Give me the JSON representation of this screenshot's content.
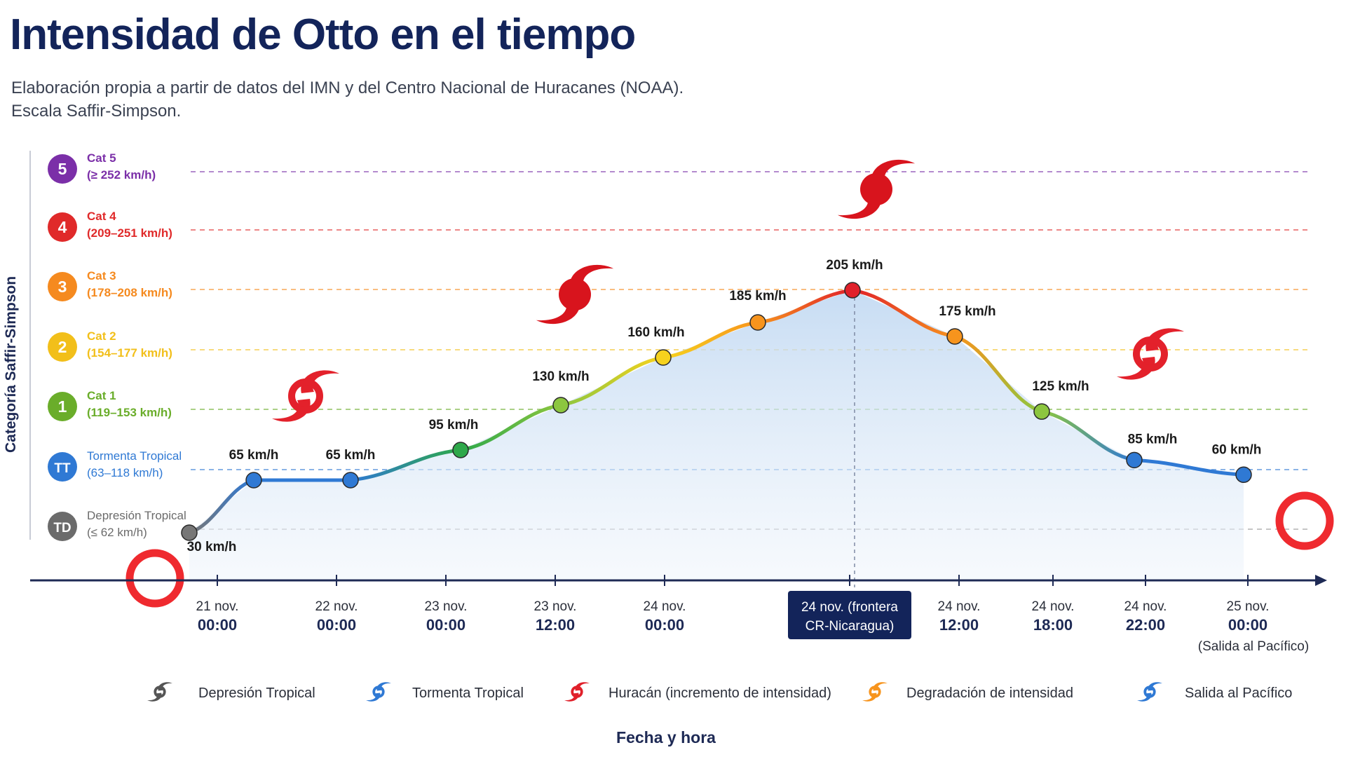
{
  "title": "Intensidad de Otto en el tiempo",
  "subtitle_line1": "Elaboración propia a partir de datos del IMN y del Centro Nacional de Huracanes (NOAA).",
  "subtitle_line2": "Escala Saffir-Simpson.",
  "chart_data": {
    "type": "line",
    "title": "Intensidad de Otto en el tiempo",
    "xlabel": "Fecha y hora",
    "ylabel": "Categoría Saffir-Simpson",
    "y_unit": "km/h",
    "categories": [
      {
        "badge": "5",
        "name": "Cat 5",
        "range": "(≥ 252 km/h)",
        "color": "#7b2fa8",
        "threshold": 252
      },
      {
        "badge": "4",
        "name": "Cat 4",
        "range": "(209–251 km/h)",
        "color": "#e02a2a",
        "threshold": 209
      },
      {
        "badge": "3",
        "name": "Cat 3",
        "range": "(178–208 km/h)",
        "color": "#f58a1f",
        "threshold": 178
      },
      {
        "badge": "2",
        "name": "Cat 2",
        "range": "(154–177 km/h)",
        "color": "#f2bf1a",
        "threshold": 154
      },
      {
        "badge": "1",
        "name": "Cat 1",
        "range": "(119–153 km/h)",
        "color": "#6aad2a",
        "threshold": 119
      },
      {
        "badge": "TT",
        "name": "Tormenta Tropical",
        "range": "(63–118 km/h)",
        "color": "#2f79d4",
        "threshold": 63
      },
      {
        "badge": "TD",
        "name": "Depresión Tropical",
        "range": "(≤ 62 km/h)",
        "color": "#6b6b6b",
        "threshold": 0
      }
    ],
    "points": [
      {
        "label": "30 km/h",
        "value": 30,
        "color": "#777777"
      },
      {
        "label": "65 km/h",
        "value": 65,
        "color": "#2f79d4"
      },
      {
        "label": "65 km/h",
        "value": 65,
        "color": "#2f79d4"
      },
      {
        "label": "95 km/h",
        "value": 95,
        "color": "#2ea84a"
      },
      {
        "label": "130 km/h",
        "value": 130,
        "color": "#8cc63f"
      },
      {
        "label": "160 km/h",
        "value": 160,
        "color": "#f6d21d"
      },
      {
        "label": "185 km/h",
        "value": 185,
        "color": "#f7941d"
      },
      {
        "label": "205 km/h",
        "value": 205,
        "color": "#e0202a"
      },
      {
        "label": "175 km/h",
        "value": 175,
        "color": "#f7941d"
      },
      {
        "label": "125 km/h",
        "value": 125,
        "color": "#8cc63f"
      },
      {
        "label": "85 km/h",
        "value": 85,
        "color": "#2f79d4"
      },
      {
        "label": "60 km/h",
        "value": 60,
        "color": "#2f79d4"
      }
    ],
    "x_ticks": [
      {
        "line1": "21 nov.",
        "line2": "00:00"
      },
      {
        "line1": "22 nov.",
        "line2": "00:00"
      },
      {
        "line1": "23 nov.",
        "line2": "00:00"
      },
      {
        "line1": "23 nov.",
        "line2": "12:00"
      },
      {
        "line1": "24 nov.",
        "line2": "00:00"
      },
      {
        "line1": "24 nov. (frontera",
        "line2": "CR-Nicaragua)",
        "highlight": true
      },
      {
        "line1": "24 nov.",
        "line2": "12:00"
      },
      {
        "line1": "24 nov.",
        "line2": "18:00"
      },
      {
        "line1": "24 nov.",
        "line2": "22:00"
      },
      {
        "line1": "25 nov.",
        "line2": "00:00",
        "line3": "(Salida al Pacífico)"
      }
    ],
    "legend": [
      {
        "label": "Depresión Tropical",
        "icon": "gray-cyclone-icon",
        "color": "#555555"
      },
      {
        "label": "Tormenta Tropical",
        "icon": "blue-cyclone-icon",
        "color": "#2f79d4"
      },
      {
        "label": "Huracán (incremento de intensidad)",
        "icon": "red-hurricane-icon",
        "color": "#e0202a"
      },
      {
        "label": "Degradación de intensidad",
        "icon": "orange-cyclone-icon",
        "color": "#f7941d"
      },
      {
        "label": "Salida al Pacífico",
        "icon": "blue-cyclone-icon",
        "color": "#2f79d4"
      }
    ],
    "grid": "dashed category thresholds",
    "legend_position": "bottom"
  }
}
